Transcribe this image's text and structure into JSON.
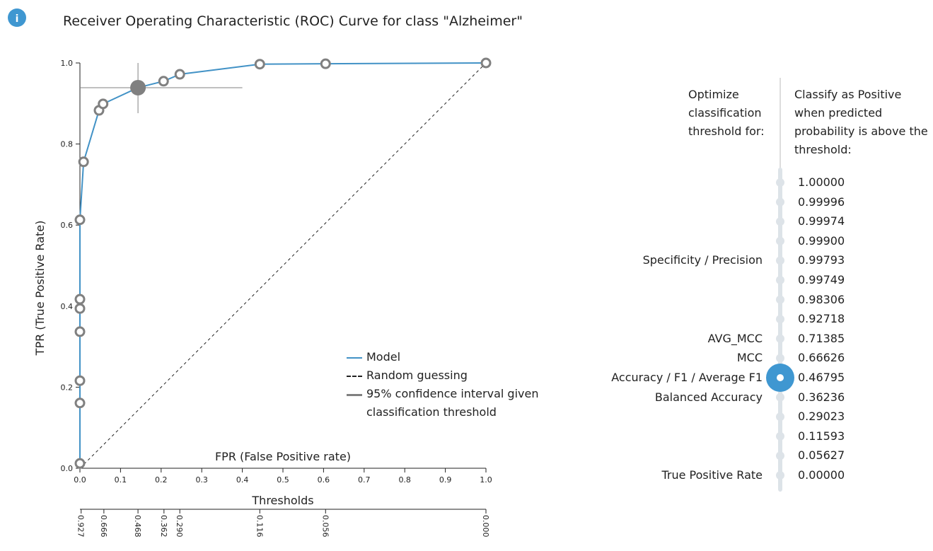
{
  "chart_data": {
    "type": "line",
    "title": "Receiver Operating Characteristic (ROC) Curve for class \"Alzheimer\"",
    "x_label": "FPR (False Positive rate)",
    "y_label": "TPR (True Positive Rate)",
    "xlim": [
      0,
      1
    ],
    "ylim": [
      0,
      1
    ],
    "xticks": [
      {
        "value": 0,
        "label": "0.0"
      },
      0.1,
      0.2,
      0.3,
      0.4,
      0.5,
      0.6,
      0.7,
      0.8,
      0.9,
      {
        "value": 1,
        "label": "1.0"
      }
    ],
    "yticks": [
      {
        "value": 0,
        "label": "0.0"
      },
      0.2,
      0.4,
      0.6,
      0.8,
      {
        "value": 1,
        "label": "1.0"
      }
    ],
    "series": [
      {
        "name": "Model",
        "color": "#4292c6",
        "x": [
          0,
          0,
          0,
          0,
          0,
          0,
          0,
          0.009,
          0.047,
          0.057,
          0.143,
          0.206,
          0.246,
          0.443,
          0.605,
          1.0
        ],
        "values": [
          0.012,
          0.161,
          0.216,
          0.337,
          0.394,
          0.417,
          0.613,
          0.756,
          0.883,
          0.899,
          0.939,
          0.955,
          0.972,
          0.997,
          0.998,
          1.0
        ]
      }
    ],
    "reference": {
      "name": "Random guessing",
      "color": "#222222"
    },
    "confidence_interval": {
      "name": "95% confidence interval given classification threshold",
      "color": "#808080",
      "point": 10,
      "x": [
        0,
        0.4
      ],
      "y": [
        0.876,
        1.0
      ]
    },
    "thresholds_axis": {
      "label": "Thresholds",
      "ticks": [
        {
          "fpr": 0.003,
          "label": "0.927"
        },
        {
          "fpr": 0.059,
          "label": "0.666"
        },
        {
          "fpr": 0.143,
          "label": "0.468"
        },
        {
          "fpr": 0.207,
          "label": "0.362"
        },
        {
          "fpr": 0.246,
          "label": "0.290"
        },
        {
          "fpr": 0.443,
          "label": "0.116"
        },
        {
          "fpr": 0.605,
          "label": "0.056"
        },
        {
          "fpr": 1.0,
          "label": "0.000"
        }
      ]
    }
  },
  "panel": {
    "info_icon": "i",
    "optimize_header": "Optimize classification threshold for:",
    "classify_header": "Classify as Positive when predicted probability is above the threshold:",
    "selected": 10,
    "rows": [
      {
        "threshold": "1.00000"
      },
      {
        "threshold": "0.99996"
      },
      {
        "threshold": "0.99974"
      },
      {
        "threshold": "0.99900"
      },
      {
        "threshold": "0.99793",
        "metric": "Specificity / Precision"
      },
      {
        "threshold": "0.99749"
      },
      {
        "threshold": "0.98306"
      },
      {
        "threshold": "0.92718"
      },
      {
        "threshold": "0.71385",
        "metric": "AVG_MCC"
      },
      {
        "threshold": "0.66626",
        "metric": "MCC"
      },
      {
        "threshold": "0.46795",
        "metric": "Accuracy / F1 / Average F1"
      },
      {
        "threshold": "0.36236",
        "metric": "Balanced Accuracy"
      },
      {
        "threshold": "0.29023"
      },
      {
        "threshold": "0.11593"
      },
      {
        "threshold": "0.05627"
      },
      {
        "threshold": "0.00000",
        "metric": "True Positive Rate"
      }
    ]
  }
}
